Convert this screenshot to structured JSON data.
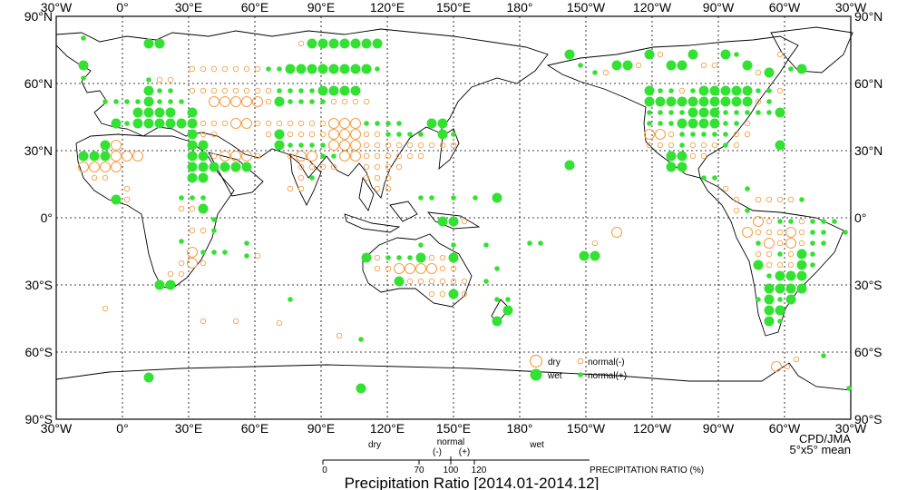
{
  "title": "Precipitation Ratio [2014.01-2014.12]",
  "credit": "CPD/JMA",
  "resolution": "5°x5° mean",
  "colors": {
    "dry": "#f5a04a",
    "wet": "#33e133",
    "coast": "#000000",
    "grid": "#000000"
  },
  "lon_labels": [
    "30°W",
    "0°",
    "30°E",
    "60°E",
    "90°E",
    "120°E",
    "150°E",
    "180°",
    "150°W",
    "120°W",
    "90°W",
    "60°W",
    "30°W"
  ],
  "lat_labels": [
    "90°N",
    "60°N",
    "30°N",
    "0°",
    "30°S",
    "60°S",
    "90°S"
  ],
  "legend": {
    "dry": "dry",
    "wet": "wet",
    "normal_minus": "normal(-)",
    "normal_plus": "normal(+)"
  },
  "scale": {
    "dry_label": "dry",
    "normal_label": "normal",
    "wet_label": "wet",
    "minus": "(-)",
    "plus": "(+)",
    "axis_label": "PRECIPITATION RATIO  (%)",
    "ticks": [
      "0",
      "70",
      "100",
      "120"
    ]
  }
}
